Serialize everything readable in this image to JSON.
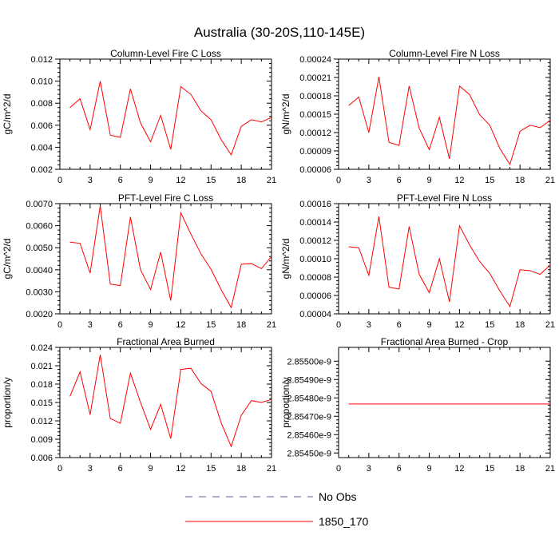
{
  "title": "Australia (30-20S,110-145E)",
  "colors": {
    "series": "#ff0000",
    "obs": "#5a5aa0",
    "axis": "#000000"
  },
  "legend": {
    "entries": [
      {
        "label": "No Obs",
        "style": "dashed"
      },
      {
        "label": "1850_170",
        "style": "solid"
      }
    ]
  },
  "chart_data": [
    {
      "type": "line",
      "title": "Column-Level Fire C Loss",
      "ylabel": "gC/m^2/d",
      "xlim": [
        0,
        21
      ],
      "ylim": [
        0.002,
        0.012
      ],
      "xticks": [
        0,
        3,
        6,
        9,
        12,
        15,
        18,
        21
      ],
      "xtick_labels": [
        "0",
        "3",
        "6",
        "9",
        "12",
        "15",
        "18",
        "21"
      ],
      "yticks": [
        0.002,
        0.004,
        0.006,
        0.008,
        0.01,
        0.012
      ],
      "ytick_labels": [
        "0.002",
        "0.004",
        "0.006",
        "0.008",
        "0.010",
        "0.012"
      ],
      "x": [
        1,
        2,
        3,
        4,
        5,
        6,
        7,
        8,
        9,
        10,
        11,
        12,
        13,
        14,
        15,
        16,
        17,
        18,
        19,
        20,
        21
      ],
      "series": [
        {
          "name": "1850_170",
          "values": [
            0.0076,
            0.0084,
            0.0056,
            0.01,
            0.0051,
            0.0049,
            0.0093,
            0.0062,
            0.0045,
            0.0069,
            0.0038,
            0.0095,
            0.0088,
            0.0073,
            0.0065,
            0.0047,
            0.0033,
            0.0059,
            0.0065,
            0.0063,
            0.0067
          ]
        }
      ]
    },
    {
      "type": "line",
      "title": "Column-Level Fire N Loss",
      "ylabel": "gN/m^2/d",
      "xlim": [
        0,
        21
      ],
      "ylim": [
        6e-05,
        0.00024
      ],
      "xticks": [
        0,
        3,
        6,
        9,
        12,
        15,
        18,
        21
      ],
      "xtick_labels": [
        "0",
        "3",
        "6",
        "9",
        "12",
        "15",
        "18",
        "21"
      ],
      "yticks": [
        6e-05,
        9e-05,
        0.00012,
        0.00015,
        0.00018,
        0.00021,
        0.00024
      ],
      "ytick_labels": [
        "0.00006",
        "0.00009",
        "0.00012",
        "0.00015",
        "0.00018",
        "0.00021",
        "0.00024"
      ],
      "x": [
        1,
        2,
        3,
        4,
        5,
        6,
        7,
        8,
        9,
        10,
        11,
        12,
        13,
        14,
        15,
        16,
        17,
        18,
        19,
        20,
        21
      ],
      "series": [
        {
          "name": "1850_170",
          "values": [
            0.000164,
            0.000178,
            0.00012,
            0.000211,
            0.000104,
            9.9e-05,
            0.000196,
            0.000127,
            9.2e-05,
            0.000145,
            7.7e-05,
            0.000196,
            0.000182,
            0.000149,
            0.000132,
            9.4e-05,
            6.8e-05,
            0.000122,
            0.000132,
            0.000128,
            0.00014
          ]
        }
      ]
    },
    {
      "type": "line",
      "title": "PFT-Level Fire C Loss",
      "ylabel": "gC/m^2/d",
      "xlim": [
        0,
        21
      ],
      "ylim": [
        0.002,
        0.007
      ],
      "xticks": [
        0,
        3,
        6,
        9,
        12,
        15,
        18,
        21
      ],
      "xtick_labels": [
        "0",
        "3",
        "6",
        "9",
        "12",
        "15",
        "18",
        "21"
      ],
      "yticks": [
        0.002,
        0.003,
        0.004,
        0.005,
        0.006,
        0.007
      ],
      "ytick_labels": [
        "0.0020",
        "0.0030",
        "0.0040",
        "0.0050",
        "0.0060",
        "0.0070"
      ],
      "x": [
        1,
        2,
        3,
        4,
        5,
        6,
        7,
        8,
        9,
        10,
        11,
        12,
        13,
        14,
        15,
        16,
        17,
        18,
        19,
        20,
        21
      ],
      "series": [
        {
          "name": "1850_170",
          "values": [
            0.00525,
            0.0052,
            0.00385,
            0.0069,
            0.00335,
            0.00328,
            0.0064,
            0.004,
            0.0031,
            0.0048,
            0.0026,
            0.00658,
            0.00562,
            0.00472,
            0.00402,
            0.0031,
            0.00228,
            0.00425,
            0.00428,
            0.00405,
            0.0046
          ]
        }
      ]
    },
    {
      "type": "line",
      "title": "PFT-Level Fire N Loss",
      "ylabel": "gN/m^2/d",
      "xlim": [
        0,
        21
      ],
      "ylim": [
        4e-05,
        0.00016
      ],
      "xticks": [
        0,
        3,
        6,
        9,
        12,
        15,
        18,
        21
      ],
      "xtick_labels": [
        "0",
        "3",
        "6",
        "9",
        "12",
        "15",
        "18",
        "21"
      ],
      "yticks": [
        4e-05,
        6e-05,
        8e-05,
        0.0001,
        0.00012,
        0.00014,
        0.00016
      ],
      "ytick_labels": [
        "0.00004",
        "0.00006",
        "0.00008",
        "0.00010",
        "0.00012",
        "0.00014",
        "0.00016"
      ],
      "x": [
        1,
        2,
        3,
        4,
        5,
        6,
        7,
        8,
        9,
        10,
        11,
        12,
        13,
        14,
        15,
        16,
        17,
        18,
        19,
        20,
        21
      ],
      "series": [
        {
          "name": "1850_170",
          "values": [
            0.000113,
            0.000112,
            8.2e-05,
            0.000146,
            6.9e-05,
            6.7e-05,
            0.000135,
            8.3e-05,
            6.3e-05,
            0.0001,
            5.3e-05,
            0.000136,
            0.000115,
            9.7e-05,
            8.4e-05,
            6.5e-05,
            4.8e-05,
            8.8e-05,
            8.7e-05,
            8.3e-05,
            9.3e-05
          ]
        }
      ]
    },
    {
      "type": "line",
      "title": "Fractional Area Burned",
      "ylabel": "proportion/y",
      "xlim": [
        0,
        21
      ],
      "ylim": [
        0.006,
        0.024
      ],
      "xticks": [
        0,
        3,
        6,
        9,
        12,
        15,
        18,
        21
      ],
      "xtick_labels": [
        "0",
        "3",
        "6",
        "9",
        "12",
        "15",
        "18",
        "21"
      ],
      "yticks": [
        0.006,
        0.009,
        0.012,
        0.015,
        0.018,
        0.021,
        0.024
      ],
      "ytick_labels": [
        "0.006",
        "0.009",
        "0.012",
        "0.015",
        "0.018",
        "0.021",
        "0.024"
      ],
      "x": [
        1,
        2,
        3,
        4,
        5,
        6,
        7,
        8,
        9,
        10,
        11,
        12,
        13,
        14,
        15,
        16,
        17,
        18,
        19,
        20,
        21
      ],
      "series": [
        {
          "name": "1850_170",
          "values": [
            0.016,
            0.02,
            0.013,
            0.0228,
            0.0124,
            0.0116,
            0.0198,
            0.015,
            0.0106,
            0.0147,
            0.0091,
            0.0204,
            0.0206,
            0.0181,
            0.0168,
            0.0117,
            0.0078,
            0.0129,
            0.0153,
            0.015,
            0.0155
          ]
        }
      ]
    },
    {
      "type": "line",
      "title": "Fractional Area Burned - Crop",
      "ylabel": "proportion/y",
      "xlim": [
        0,
        21
      ],
      "ylim": [
        2.854475e-09,
        2.855075e-09
      ],
      "xticks": [
        0,
        3,
        6,
        9,
        12,
        15,
        18,
        21
      ],
      "xtick_labels": [
        "0",
        "3",
        "6",
        "9",
        "12",
        "15",
        "18",
        "21"
      ],
      "yticks": [
        2.8545e-09,
        2.8546e-09,
        2.8547e-09,
        2.8548e-09,
        2.8549e-09,
        2.855e-09
      ],
      "ytick_labels": [
        "2.85450e-9",
        "2.85460e-9",
        "2.85470e-9",
        "2.85480e-9",
        "2.85490e-9",
        "2.85500e-9"
      ],
      "x": [
        1,
        2,
        3,
        4,
        5,
        6,
        7,
        8,
        9,
        10,
        11,
        12,
        13,
        14,
        15,
        16,
        17,
        18,
        19,
        20,
        21
      ],
      "series": [
        {
          "name": "1850_170",
          "values": [
            2.854767e-09,
            2.854767e-09,
            2.854767e-09,
            2.854767e-09,
            2.854767e-09,
            2.854767e-09,
            2.854767e-09,
            2.854767e-09,
            2.854767e-09,
            2.854767e-09,
            2.854767e-09,
            2.854767e-09,
            2.854767e-09,
            2.854767e-09,
            2.854767e-09,
            2.854767e-09,
            2.854767e-09,
            2.854767e-09,
            2.854767e-09,
            2.854767e-09,
            2.854767e-09
          ]
        }
      ]
    }
  ]
}
